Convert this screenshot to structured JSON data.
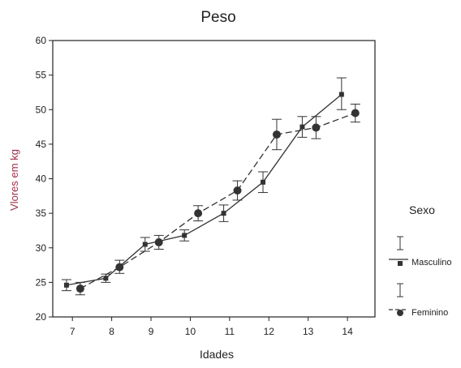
{
  "chart_data": {
    "type": "line",
    "title": "Peso",
    "xlabel": "Idades",
    "ylabel": "Vlores em kg",
    "x_categories": [
      "7",
      "8",
      "9",
      "10",
      "11",
      "12",
      "13",
      "14"
    ],
    "ylim": [
      20,
      60
    ],
    "y_ticks": [
      20,
      25,
      30,
      35,
      40,
      45,
      50,
      55,
      60
    ],
    "grid": false,
    "legend": {
      "title": "Sexo",
      "position": "right"
    },
    "series": [
      {
        "name": "Masculino",
        "line_style": "solid",
        "marker": "square",
        "color": "#333333",
        "x": [
          6.85,
          7.85,
          8.85,
          9.85,
          10.85,
          11.85,
          12.85,
          13.85
        ],
        "values": [
          24.6,
          25.6,
          30.5,
          31.8,
          35.0,
          39.5,
          47.5,
          52.2
        ],
        "error_low": [
          23.8,
          25.0,
          29.5,
          31.0,
          33.8,
          38.0,
          46.0,
          50.0
        ],
        "error_high": [
          25.4,
          26.2,
          31.5,
          32.6,
          36.2,
          41.0,
          49.0,
          54.6
        ]
      },
      {
        "name": "Feminino",
        "line_style": "dashed",
        "marker": "circle",
        "color": "#333333",
        "x": [
          7.2,
          8.2,
          9.2,
          10.2,
          11.2,
          12.2,
          13.2,
          14.2
        ],
        "values": [
          24.1,
          27.2,
          30.8,
          35.0,
          38.3,
          46.4,
          47.4,
          49.5
        ],
        "error_low": [
          23.2,
          26.3,
          29.8,
          33.9,
          36.9,
          44.2,
          45.8,
          48.2
        ],
        "error_high": [
          25.0,
          28.2,
          31.8,
          36.1,
          39.7,
          48.6,
          49.0,
          50.8
        ]
      }
    ]
  },
  "colors": {
    "axis": "#222222",
    "ylabel": "#a0304a",
    "series": "#333333"
  }
}
